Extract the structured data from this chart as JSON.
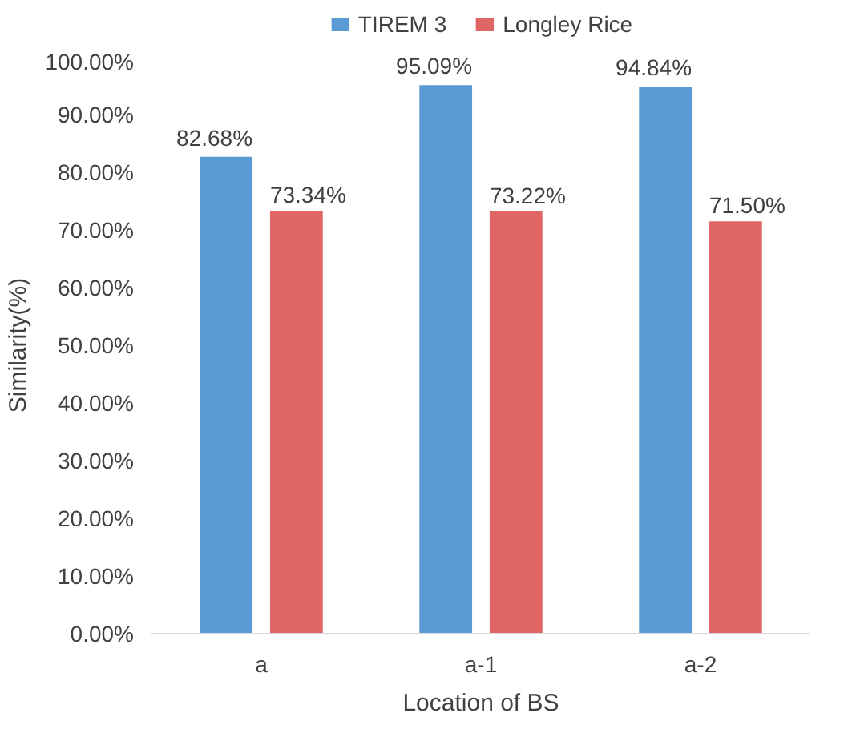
{
  "chart_data": {
    "type": "bar",
    "xlabel": "Location of BS",
    "ylabel": "Similarity(%)",
    "categories": [
      "a",
      "a-1",
      "a-2"
    ],
    "series": [
      {
        "name": "TIREM 3",
        "color": "#5b9bd5",
        "values": [
          82.68,
          95.09,
          94.84
        ],
        "value_labels": [
          "82.68%",
          "95.09%",
          "94.84%"
        ]
      },
      {
        "name": "Longley Rice",
        "color": "#e06666",
        "values": [
          73.34,
          73.22,
          71.5
        ],
        "value_labels": [
          "73.34%",
          "73.22%",
          "71.50%"
        ]
      }
    ],
    "ylim": [
      0,
      100
    ],
    "yticks": [
      {
        "value": 0,
        "label": "0.00%"
      },
      {
        "value": 10,
        "label": "10.00%"
      },
      {
        "value": 20,
        "label": "20.00%"
      },
      {
        "value": 30,
        "label": "30.00%"
      },
      {
        "value": 40,
        "label": "40.00%"
      },
      {
        "value": 50,
        "label": "50.00%"
      },
      {
        "value": 60,
        "label": "60.00%"
      },
      {
        "value": 70,
        "label": "70.00%"
      },
      {
        "value": 80,
        "label": "80.00%"
      },
      {
        "value": 90,
        "label": "90.00%"
      },
      {
        "value": 100,
        "label": "100.00%"
      }
    ],
    "grid": false,
    "legend": "top"
  }
}
